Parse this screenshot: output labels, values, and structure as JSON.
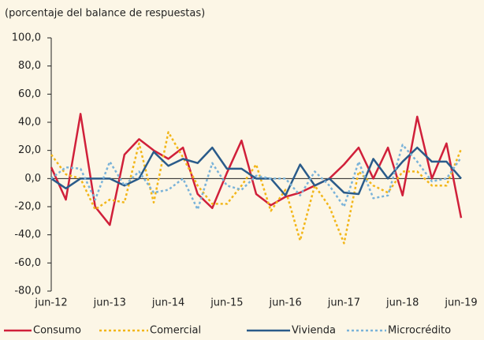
{
  "chart_data": {
    "type": "line",
    "subtitle": "(porcentaje del balance de respuestas)",
    "categories": [
      "jun-12",
      null,
      null,
      null,
      "jun-13",
      null,
      null,
      null,
      "jun-14",
      null,
      null,
      null,
      "jun-15",
      null,
      null,
      null,
      "jun-16",
      null,
      null,
      null,
      "jun-17",
      null,
      null,
      null,
      "jun-18",
      null,
      null,
      null,
      "jun-19"
    ],
    "series": [
      {
        "name": "Consumo",
        "color": "#d0203a",
        "dash": "solid",
        "values": [
          8,
          -15,
          46,
          -20,
          -33,
          17,
          28,
          20,
          14,
          22,
          -11,
          -21,
          4,
          27,
          -11,
          -19,
          -13,
          -10,
          -5,
          0,
          10,
          22,
          0,
          22,
          -12,
          44,
          0,
          25,
          -28
        ]
      },
      {
        "name": "Comercial",
        "color": "#f2b619",
        "dash": "dotted",
        "values": [
          17,
          3,
          0,
          -22,
          -15,
          -17,
          25,
          -17,
          33,
          15,
          -5,
          -18,
          -18,
          -5,
          10,
          -23,
          -8,
          -44,
          -5,
          -20,
          -46,
          5,
          -5,
          -10,
          5,
          5,
          -5,
          -5,
          21
        ]
      },
      {
        "name": "Vivienda",
        "color": "#2a5b8a",
        "dash": "solid",
        "values": [
          0,
          -7,
          0,
          0,
          0,
          -5,
          0,
          19,
          9,
          14,
          11,
          22,
          7,
          7,
          0,
          0,
          -12,
          10,
          -5,
          0,
          -10,
          -11,
          14,
          0,
          12,
          22,
          12,
          12,
          0
        ]
      },
      {
        "name": "Microcrédito",
        "color": "#7ab3d9",
        "dash": "dotted",
        "values": [
          0,
          8,
          7,
          -15,
          12,
          -5,
          5,
          -10,
          -8,
          0,
          -22,
          11,
          -5,
          -8,
          2,
          0,
          0,
          -12,
          5,
          -5,
          -20,
          12,
          -14,
          -12,
          24,
          12,
          -2,
          0,
          15
        ]
      }
    ],
    "ylim": [
      -80,
      100
    ],
    "yticks": [
      {
        "value": -80,
        "label": "-80,0"
      },
      {
        "value": -60,
        "label": "-60,0"
      },
      {
        "value": -40,
        "label": "-40,0"
      },
      {
        "value": -20,
        "label": "-20,0"
      },
      {
        "value": 0,
        "label": "0,0"
      },
      {
        "value": 20,
        "label": "20,0"
      },
      {
        "value": 40,
        "label": "40,0"
      },
      {
        "value": 60,
        "label": "60,0"
      },
      {
        "value": 80,
        "label": "80,0"
      },
      {
        "value": 100,
        "label": "100,0"
      }
    ],
    "grid": false,
    "legend": "bottom"
  }
}
